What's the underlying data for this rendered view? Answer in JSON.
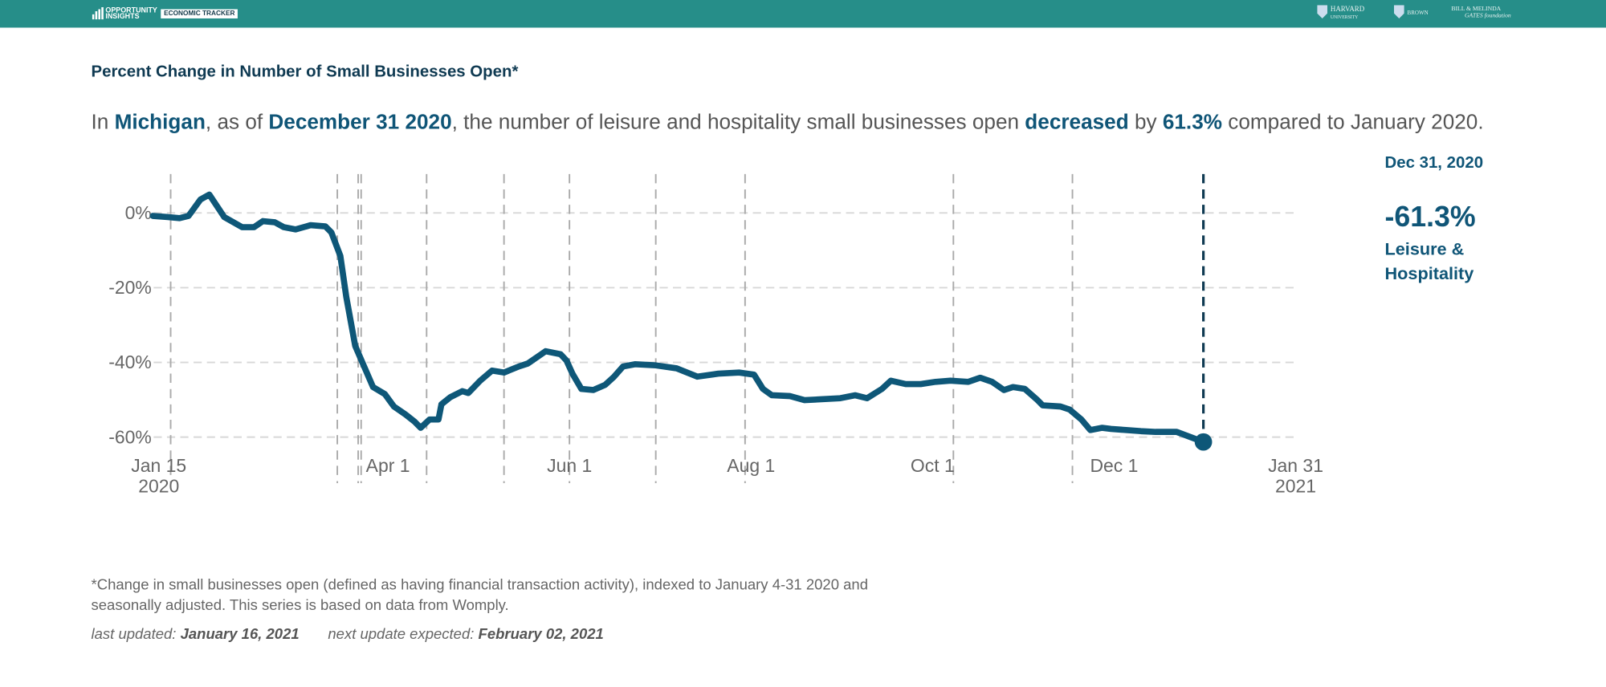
{
  "header": {
    "brand": [
      "OPPORTUNITY",
      "INSIGHTS"
    ],
    "product": "ECONOMIC TRACKER",
    "partners": [
      [
        "HARVARD",
        "UNIVERSITY"
      ],
      [
        "BROWN"
      ],
      [
        "BILL & MELINDA",
        "GATES foundation"
      ]
    ]
  },
  "headline": [
    {
      "text": "In "
    },
    {
      "text": "Michigan",
      "bold": true
    },
    {
      "text": ", as of "
    },
    {
      "text": "December 31 2020",
      "bold": true
    },
    {
      "text": ", the number of leisure and hospitality small businesses open "
    },
    {
      "text": "decreased",
      "bold": true
    },
    {
      "text": " by "
    },
    {
      "text": "61.3%",
      "bold": true
    },
    {
      "text": " compared to January 2020."
    }
  ],
  "chart_data": {
    "type": "line",
    "title": "Percent Change in Number of Small Businesses Open*",
    "x": [
      "2020-01-13",
      "2020-01-18",
      "2020-01-22",
      "2020-01-25",
      "2020-01-29",
      "2020-02-01",
      "2020-02-06",
      "2020-02-12",
      "2020-02-16",
      "2020-02-19",
      "2020-02-23",
      "2020-02-26",
      "2020-03-01",
      "2020-03-06",
      "2020-03-11",
      "2020-03-13",
      "2020-03-16",
      "2020-03-18",
      "2020-03-21",
      "2020-03-24",
      "2020-03-27",
      "2020-03-31",
      "2020-04-03",
      "2020-04-07",
      "2020-04-10",
      "2020-04-12",
      "2020-04-15",
      "2020-04-18",
      "2020-04-19",
      "2020-04-22",
      "2020-04-26",
      "2020-04-28",
      "2020-05-02",
      "2020-05-06",
      "2020-05-10",
      "2020-05-15",
      "2020-05-18",
      "2020-05-22",
      "2020-05-24",
      "2020-05-29",
      "2020-05-31",
      "2020-06-02",
      "2020-06-05",
      "2020-06-09",
      "2020-06-13",
      "2020-06-16",
      "2020-06-19",
      "2020-06-23",
      "2020-06-30",
      "2020-07-07",
      "2020-07-14",
      "2020-07-21",
      "2020-07-28",
      "2020-08-02",
      "2020-08-05",
      "2020-08-08",
      "2020-08-14",
      "2020-08-19",
      "2020-08-24",
      "2020-08-31",
      "2020-09-05",
      "2020-09-09",
      "2020-09-14",
      "2020-09-17",
      "2020-09-22",
      "2020-09-27",
      "2020-10-02",
      "2020-10-07",
      "2020-10-13",
      "2020-10-17",
      "2020-10-21",
      "2020-10-25",
      "2020-10-28",
      "2020-11-01",
      "2020-11-05",
      "2020-11-07",
      "2020-11-13",
      "2020-11-16",
      "2020-11-20",
      "2020-11-23",
      "2020-11-27",
      "2020-11-30",
      "2020-12-05",
      "2020-12-10",
      "2020-12-15",
      "2020-12-22",
      "2020-12-31"
    ],
    "series": [
      {
        "name": "Leisure & Hospitality",
        "color": "#0e5778",
        "values": [
          -0.8,
          -1.1,
          -1.4,
          -0.8,
          3.6,
          4.9,
          -1.1,
          -3.8,
          -3.8,
          -2.2,
          -2.5,
          -3.8,
          -4.4,
          -3.3,
          -3.6,
          -5.2,
          -11.5,
          -22.5,
          -35.6,
          -41.1,
          -46.6,
          -48.5,
          -51.8,
          -54,
          -55.9,
          -57.5,
          -55.3,
          -55.3,
          -51.2,
          -49.3,
          -47.7,
          -48.2,
          -44.9,
          -42.2,
          -42.7,
          -41.1,
          -40.3,
          -38.1,
          -37,
          -37.8,
          -39.5,
          -43,
          -47.1,
          -47.4,
          -46,
          -43.8,
          -41.1,
          -40.5,
          -40.8,
          -41.6,
          -43.8,
          -43,
          -42.7,
          -43.3,
          -47.1,
          -48.8,
          -49,
          -50.1,
          -49.9,
          -49.6,
          -48.8,
          -49.6,
          -47.1,
          -44.9,
          -45.8,
          -45.8,
          -45.2,
          -44.9,
          -45.2,
          -44.1,
          -45.2,
          -47.4,
          -46.6,
          -47.1,
          -49.9,
          -51.5,
          -51.8,
          -52.6,
          -55.3,
          -58.1,
          -57.5,
          -57.8,
          -58.1,
          -58.4,
          -58.6,
          -58.6,
          -61.3
        ],
        "end_date_label": "Dec 31, 2020",
        "end_label": "-61.3%"
      }
    ],
    "events": [
      "2020-01-19",
      "2020-03-15",
      "2020-03-22",
      "2020-03-23",
      "2020-04-14",
      "2020-05-10",
      "2020-06-01",
      "2020-06-30",
      "2020-07-30",
      "2020-10-08",
      "2020-11-17"
    ],
    "xlim": [
      "2020-01-15",
      "2021-01-31"
    ],
    "xticks": [
      {
        "value": "2020-01-15",
        "label": "Jan 15",
        "year": "2020"
      },
      {
        "value": "2020-04-01",
        "label": "Apr 1"
      },
      {
        "value": "2020-06-01",
        "label": "Jun 1"
      },
      {
        "value": "2020-08-01",
        "label": "Aug 1"
      },
      {
        "value": "2020-10-01",
        "label": "Oct 1"
      },
      {
        "value": "2020-12-01",
        "label": "Dec 1"
      },
      {
        "value": "2021-01-31",
        "label": "Jan 31",
        "year": "2021"
      }
    ],
    "ylim": [
      -72,
      10
    ],
    "yticks": [
      {
        "value": 0,
        "label": "0%"
      },
      {
        "value": -20,
        "label": "-20%"
      },
      {
        "value": -40,
        "label": "-40%"
      },
      {
        "value": -60,
        "label": "-60%"
      }
    ],
    "grid": true
  },
  "footnote": "*Change in small businesses open (defined as having financial transaction activity), indexed to January 4-31 2020 and seasonally adjusted. This series is based on data from Womply.",
  "updates": [
    {
      "label": "last updated:",
      "date": "January 16, 2021"
    },
    {
      "label": "next update expected:",
      "date": "February 02, 2021"
    }
  ]
}
